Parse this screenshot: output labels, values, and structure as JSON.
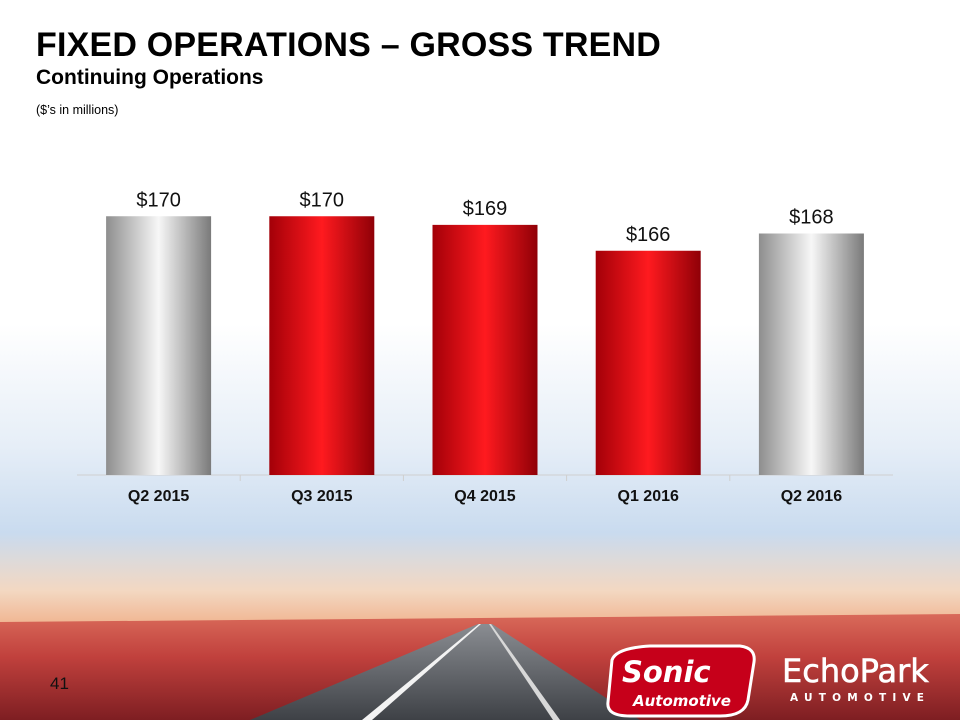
{
  "slide": {
    "title": "FIXED OPERATIONS – GROSS TREND",
    "subtitle": "Continuing Operations",
    "units_note": "($’s in millions)",
    "page_number": "41"
  },
  "logos": {
    "sonic_word": "Sonic",
    "sonic_sub": "Automotive",
    "echopark_word": "EchoPark",
    "echopark_sub": "AUTOMOTIVE"
  },
  "chart_data": {
    "type": "bar",
    "title": "",
    "xlabel": "",
    "ylabel": "",
    "categories": [
      "Q2 2015",
      "Q3 2015",
      "Q4 2015",
      "Q1 2016",
      "Q2 2016"
    ],
    "values": [
      170,
      170,
      169,
      166,
      168
    ],
    "data_labels": [
      "$170",
      "$170",
      "$169",
      "$166",
      "$168"
    ],
    "bar_colors": [
      "silver",
      "red",
      "red",
      "red",
      "silver"
    ],
    "ylim": [
      140,
      172
    ],
    "grid": false,
    "legend": "none",
    "colors": {
      "red": "#e8000b",
      "silver": "#b7b7b7"
    }
  }
}
